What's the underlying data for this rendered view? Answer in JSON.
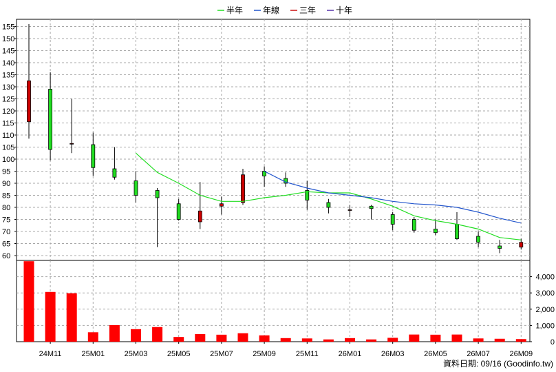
{
  "legend": [
    {
      "label": "半年",
      "color": "#22dd22"
    },
    {
      "label": "年線",
      "color": "#2255cc"
    },
    {
      "label": "三年",
      "color": "#cc1111"
    },
    {
      "label": "十年",
      "color": "#5533aa"
    }
  ],
  "footer": {
    "source_label": "資料日期: 09/16 (Goodinfo.tw)"
  },
  "chart_data": [
    {
      "type": "candlestick",
      "y_ticks": [
        60,
        65,
        70,
        75,
        80,
        85,
        90,
        95,
        100,
        105,
        110,
        115,
        120,
        125,
        130,
        135,
        140,
        145,
        150,
        155
      ],
      "ylim": [
        58,
        158
      ],
      "grid": true,
      "legend_position": "top-center",
      "x_tick_labels": [
        {
          "label": "24M11",
          "index": 1
        },
        {
          "label": "25M01",
          "index": 3
        },
        {
          "label": "25M03",
          "index": 5
        },
        {
          "label": "25M05",
          "index": 7
        },
        {
          "label": "25M07",
          "index": 9
        },
        {
          "label": "25M09",
          "index": 11
        },
        {
          "label": "25M11",
          "index": 13
        },
        {
          "label": "26M01",
          "index": 15
        },
        {
          "label": "26M03",
          "index": 17
        },
        {
          "label": "26M05",
          "index": 19
        },
        {
          "label": "26M07",
          "index": 21
        },
        {
          "label": "26M09",
          "index": 23
        }
      ],
      "candles": [
        {
          "open": 115.5,
          "high": 156,
          "low": 108.5,
          "close": 132.5
        },
        {
          "open": 129,
          "high": 136,
          "low": 99.5,
          "close": 104
        },
        {
          "open": 106.5,
          "high": 125,
          "low": 102.5,
          "close": 106.5
        },
        {
          "open": 106,
          "high": 111,
          "low": 93,
          "close": 96.5
        },
        {
          "open": 96,
          "high": 105,
          "low": 91.5,
          "close": 92.5
        },
        {
          "open": 91,
          "high": 95,
          "low": 82,
          "close": 85
        },
        {
          "open": 87,
          "high": 88,
          "low": 63.5,
          "close": 84
        },
        {
          "open": 81.5,
          "high": 83.5,
          "low": 74.5,
          "close": 75
        },
        {
          "open": 74,
          "high": 90.5,
          "low": 71,
          "close": 78.5
        },
        {
          "open": 80.5,
          "high": 84.5,
          "low": 77,
          "close": 81.5
        },
        {
          "open": 82,
          "high": 96,
          "low": 81,
          "close": 93.5
        },
        {
          "open": 95,
          "high": 97,
          "low": 88.5,
          "close": 93
        },
        {
          "open": 92,
          "high": 94.5,
          "low": 88.5,
          "close": 90
        },
        {
          "open": 87,
          "high": 91,
          "low": 79,
          "close": 83
        },
        {
          "open": 82,
          "high": 83.5,
          "low": 77.5,
          "close": 80
        },
        {
          "open": 79,
          "high": 81,
          "low": 76,
          "close": 79
        },
        {
          "open": 80.5,
          "high": 81,
          "low": 75,
          "close": 79.5
        },
        {
          "open": 77,
          "high": 78,
          "low": 70.5,
          "close": 73
        },
        {
          "open": 75,
          "high": 76,
          "low": 69.5,
          "close": 70.5
        },
        {
          "open": 71,
          "high": 75,
          "low": 68.5,
          "close": 69.5
        },
        {
          "open": 73,
          "high": 78,
          "low": 66.5,
          "close": 67
        },
        {
          "open": 68,
          "high": 70,
          "low": 63.5,
          "close": 65.5
        },
        {
          "open": 64,
          "high": 66.5,
          "low": 61,
          "close": 63
        },
        {
          "open": 63.5,
          "high": 67,
          "low": 62.5,
          "close": 65.5
        }
      ],
      "series": [
        {
          "name": "半年",
          "start_index": 5,
          "values": [
            102.5,
            94.5,
            90,
            85,
            82.5,
            82.5,
            84,
            85,
            86.5,
            86,
            86,
            83.5,
            80.5,
            76.5,
            74.5,
            73,
            71,
            67.5,
            66.5
          ]
        },
        {
          "name": "年線",
          "start_index": 11,
          "values": [
            95,
            90.5,
            88,
            86,
            85,
            84,
            82.5,
            81.5,
            81,
            80,
            78,
            75.5,
            73.5
          ]
        }
      ]
    },
    {
      "type": "bar",
      "series_color": "#ff0000",
      "y_ticks": [
        0,
        1000,
        2000,
        3000,
        4000
      ],
      "y_tick_labels": [
        "0",
        "1,000",
        "2,000",
        "3,000",
        "4,000"
      ],
      "ylim": [
        0,
        5000
      ],
      "values": [
        4950,
        3060,
        2980,
        580,
        1020,
        770,
        900,
        290,
        470,
        430,
        520,
        390,
        220,
        200,
        140,
        220,
        140,
        240,
        440,
        430,
        440,
        200,
        180,
        160
      ]
    }
  ]
}
